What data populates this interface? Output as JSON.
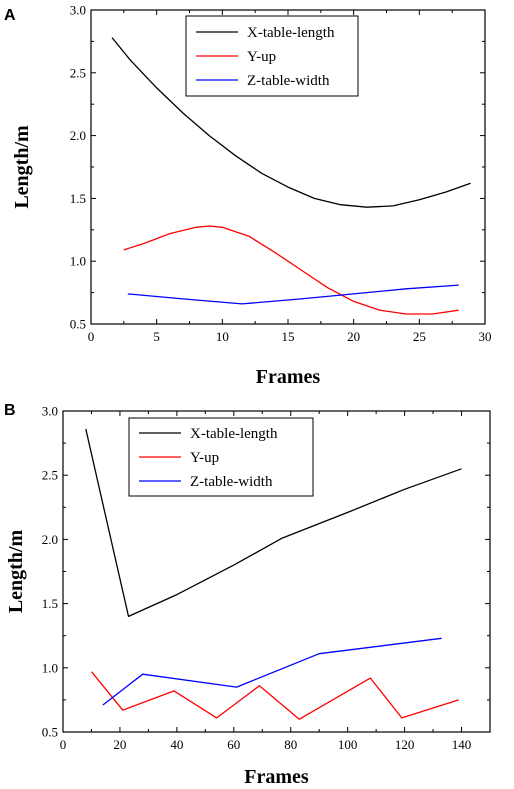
{
  "chart_data": [
    {
      "panel_label": "A",
      "type": "line",
      "xlabel": "Frames",
      "ylabel": "Length/m",
      "xlim": [
        0,
        30
      ],
      "ylim": [
        0.5,
        3.0
      ],
      "xticks": [
        0,
        5,
        10,
        15,
        20,
        25,
        30
      ],
      "yticks": [
        0.5,
        1.0,
        1.5,
        2.0,
        2.5,
        3.0
      ],
      "xtick_labels": [
        "0",
        "5",
        "10",
        "15",
        "20",
        "25",
        "30"
      ],
      "ytick_labels": [
        "0.5",
        "1.0",
        "1.5",
        "2.0",
        "2.5",
        "3.0"
      ],
      "legend_position": "top-center",
      "grid": false,
      "series": [
        {
          "name": "X-table-length",
          "color": "#000000",
          "x": [
            1.6,
            3,
            5,
            7,
            9,
            11,
            13,
            15,
            17,
            19,
            21,
            23,
            25,
            27,
            28.9
          ],
          "y": [
            2.78,
            2.6,
            2.38,
            2.18,
            2.0,
            1.84,
            1.7,
            1.59,
            1.5,
            1.45,
            1.43,
            1.44,
            1.49,
            1.55,
            1.62
          ]
        },
        {
          "name": "Y-up",
          "color": "#ff0000",
          "x": [
            2.5,
            4,
            6,
            8,
            9,
            10,
            12,
            14,
            16,
            18,
            20,
            22,
            24,
            26,
            28
          ],
          "y": [
            1.09,
            1.14,
            1.22,
            1.27,
            1.28,
            1.27,
            1.2,
            1.07,
            0.93,
            0.79,
            0.68,
            0.61,
            0.58,
            0.58,
            0.61
          ]
        },
        {
          "name": "Z-table-width",
          "color": "#0000ff",
          "x": [
            2.8,
            7,
            11.5,
            16,
            20,
            24,
            28
          ],
          "y": [
            0.74,
            0.7,
            0.66,
            0.7,
            0.74,
            0.78,
            0.81
          ]
        }
      ]
    },
    {
      "panel_label": "B",
      "type": "line",
      "xlabel": "Frames",
      "ylabel": "Length/m",
      "xlim": [
        0,
        150
      ],
      "ylim": [
        0.5,
        3.0
      ],
      "xticks": [
        0,
        20,
        40,
        60,
        80,
        100,
        120,
        140
      ],
      "yticks": [
        0.5,
        1.0,
        1.5,
        2.0,
        2.5,
        3.0
      ],
      "xtick_labels": [
        "0",
        "20",
        "40",
        "60",
        "80",
        "100",
        "120",
        "140"
      ],
      "ytick_labels": [
        "0.5",
        "1.0",
        "1.5",
        "2.0",
        "2.5",
        "3.0"
      ],
      "legend_position": "top-left",
      "grid": false,
      "series": [
        {
          "name": "X-table-length",
          "color": "#000000",
          "x": [
            8,
            23,
            40,
            60,
            77,
            100,
            120,
            140
          ],
          "y": [
            2.86,
            1.4,
            1.57,
            1.8,
            2.01,
            2.21,
            2.39,
            2.55
          ]
        },
        {
          "name": "Y-up",
          "color": "#ff0000",
          "x": [
            10,
            21,
            39,
            54,
            69,
            83,
            108,
            119,
            139
          ],
          "y": [
            0.97,
            0.67,
            0.82,
            0.61,
            0.86,
            0.6,
            0.92,
            0.61,
            0.75
          ]
        },
        {
          "name": "Z-table-width",
          "color": "#0000ff",
          "x": [
            14,
            28,
            61,
            90,
            133
          ],
          "y": [
            0.71,
            0.95,
            0.85,
            1.11,
            1.23
          ]
        }
      ]
    }
  ]
}
